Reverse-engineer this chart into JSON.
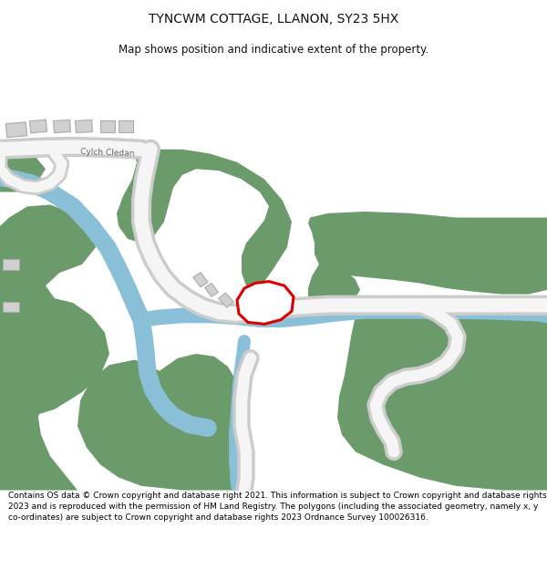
{
  "title": "TYNCWM COTTAGE, LLANON, SY23 5HX",
  "subtitle": "Map shows position and indicative extent of the property.",
  "footer": "Contains OS data © Crown copyright and database right 2021. This information is subject to Crown copyright and database rights 2023 and is reproduced with the permission of HM Land Registry. The polygons (including the associated geometry, namely x, y co-ordinates) are subject to Crown copyright and database rights 2023 Ordnance Survey 100026316.",
  "bg_color": "#ffffff",
  "map_bg": "#ffffff",
  "green_color": "#6b9a6b",
  "blue_color": "#89c0d8",
  "road_fill": "#f5f5f5",
  "road_border": "#cccccc",
  "building_color": "#d0d0d0",
  "building_border": "#aaaaaa",
  "red_outline": "#dd0000",
  "road_label": "Cylch Cledan",
  "title_fontsize": 10,
  "subtitle_fontsize": 8.5,
  "footer_fontsize": 6.5
}
